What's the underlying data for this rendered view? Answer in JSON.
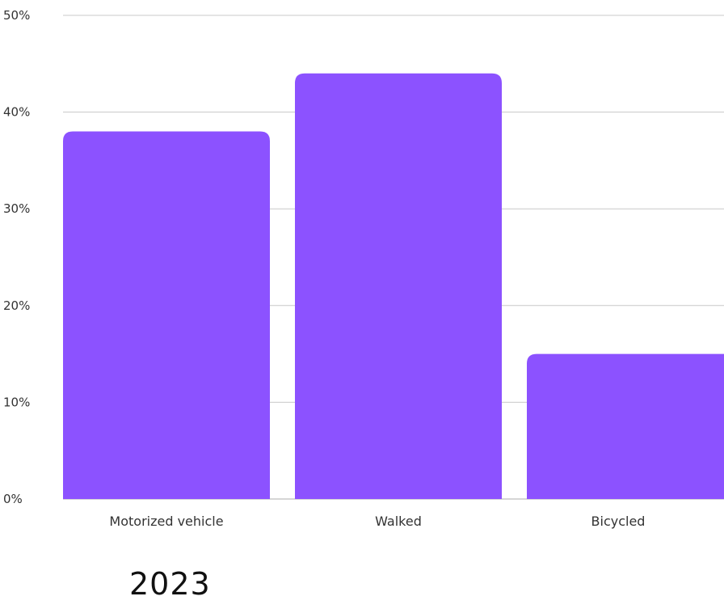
{
  "chart_data": {
    "type": "bar",
    "categories": [
      "Motorized vehicle",
      "Walked",
      "Bicycled"
    ],
    "values": [
      38,
      44,
      15
    ],
    "ylim": [
      0,
      50
    ],
    "yticks": [
      "0%",
      "10%",
      "20%",
      "30%",
      "40%",
      "50%"
    ],
    "ytick_values": [
      0,
      10,
      20,
      30,
      40,
      50
    ],
    "grid": true,
    "legend": "none",
    "bar_color": "#8c52ff",
    "grid_color": "#c8c8c8"
  },
  "caption": "2023"
}
